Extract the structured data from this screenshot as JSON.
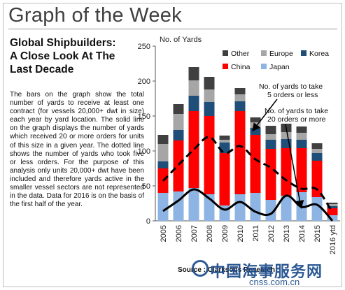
{
  "page": {
    "title": "Graph of the Week",
    "headline_lines": [
      "Global Shipbuilders:",
      "A Close Look At The",
      "Last Decade"
    ],
    "body": "The bars on the graph show the total number of yards to receive at least one contract (for vessels 20,000+ dwt in size) each year by yard location. The solid line on the graph displays the number of yards which received 20 or more orders for units of this size in a given year. The dotted line shows the number of yards who took five or less orders. For the purpose of this analysis only units 20,000+ dwt have been included and therefore yards active in the smaller vessel sectors are not represented in the data. Data for 2016 is on the basis of the first half of the year.",
    "source": "Source : Clarksons Research",
    "watermark": "中国海事服务网",
    "watermark_url": "cnss.com.cn"
  },
  "chart_data": {
    "type": "bar",
    "stacked": true,
    "ylabel": "No. of Yards",
    "ylim": [
      0,
      250
    ],
    "yticks": [
      0,
      50,
      100,
      150,
      200,
      250
    ],
    "categories": [
      "2005",
      "2006",
      "2007",
      "2008",
      "2009",
      "2010",
      "2011",
      "2012",
      "2013",
      "2014",
      "2015",
      "2016 ytd"
    ],
    "series": [
      {
        "name": "Japan",
        "color": "#8DB4E2",
        "values": [
          40,
          42,
          47,
          38,
          22,
          38,
          40,
          30,
          36,
          41,
          34,
          8
        ]
      },
      {
        "name": "China",
        "color": "#FF0000",
        "values": [
          35,
          73,
          110,
          112,
          75,
          119,
          83,
          73,
          68,
          63,
          52,
          10
        ]
      },
      {
        "name": "Korea",
        "color": "#1F4E79",
        "values": [
          10,
          15,
          22,
          20,
          15,
          14,
          10,
          13,
          13,
          12,
          11,
          3
        ]
      },
      {
        "name": "Europe",
        "color": "#A6A6A6",
        "values": [
          25,
          23,
          22,
          18,
          4,
          10,
          8,
          8,
          10,
          10,
          6,
          3
        ]
      },
      {
        "name": "Other",
        "color": "#404040",
        "values": [
          13,
          14,
          19,
          18,
          6,
          9,
          7,
          12,
          12,
          9,
          8,
          2
        ]
      }
    ],
    "lines": [
      {
        "name": "No. of yards to take 5 orders or less",
        "style": "dashed",
        "values": [
          57,
          80,
          102,
          120,
          97,
          107,
          88,
          76,
          58,
          46,
          45,
          12
        ]
      },
      {
        "name": "No. of yards to take 20 orders or more",
        "style": "solid",
        "values": [
          14,
          29,
          45,
          32,
          16,
          27,
          13,
          10,
          36,
          20,
          23,
          0
        ]
      }
    ],
    "annotations": [
      {
        "lines": [
          "No. of yards to take",
          "5 orders or less"
        ]
      },
      {
        "lines": [
          "No. of yards to take",
          "20 orders or more"
        ]
      }
    ],
    "legend_position": "top"
  }
}
